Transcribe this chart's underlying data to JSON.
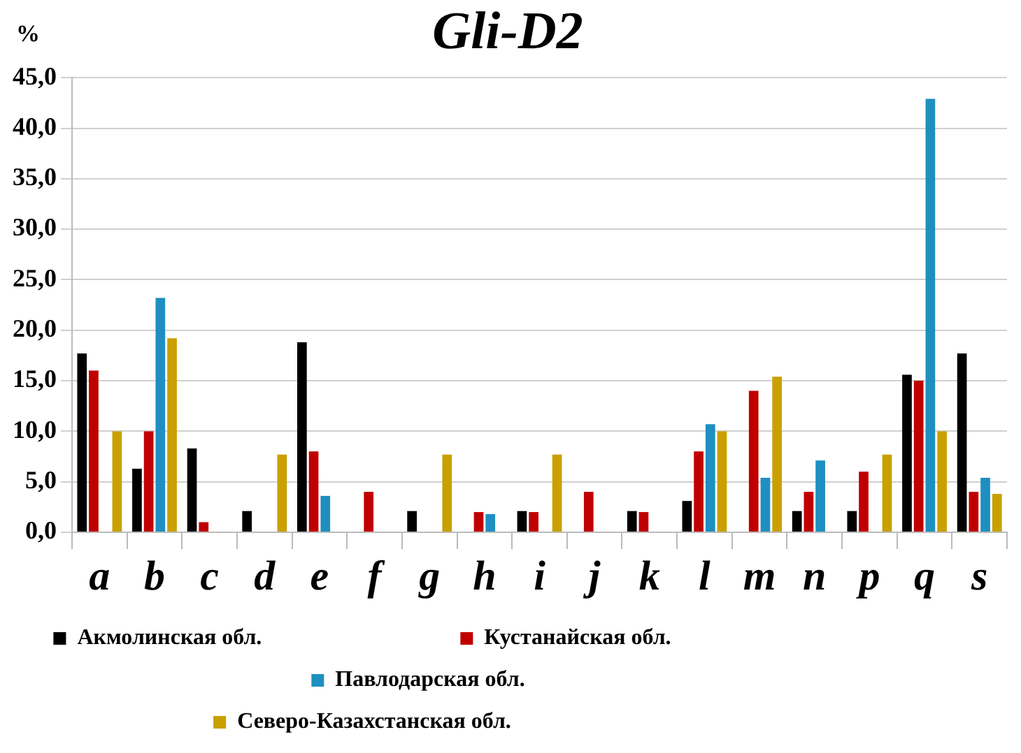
{
  "chart_data": {
    "type": "bar",
    "title": "Gli-D2",
    "ylabel": "%",
    "categories": [
      "a",
      "b",
      "c",
      "d",
      "e",
      "f",
      "g",
      "h",
      "i",
      "j",
      "k",
      "l",
      "m",
      "n",
      "p",
      "q",
      "s"
    ],
    "series": [
      {
        "name": "Акмолинская обл.",
        "color": "#000000",
        "values": [
          17.7,
          6.3,
          8.3,
          2.1,
          18.8,
          0,
          2.1,
          0,
          2.1,
          0,
          2.1,
          3.1,
          0,
          2.1,
          2.1,
          15.6,
          17.7
        ]
      },
      {
        "name": "Кустанайская обл.",
        "color": "#c00000",
        "values": [
          16.0,
          10.0,
          1.0,
          0,
          8.0,
          4.0,
          0,
          2.0,
          2.0,
          4.0,
          2.0,
          8.0,
          14.0,
          4.0,
          6.0,
          15.0,
          4.0
        ]
      },
      {
        "name": "Павлодарская обл.",
        "color": "#1e8fc0",
        "values": [
          0,
          23.2,
          0,
          0,
          3.6,
          0,
          0,
          1.8,
          0,
          0,
          0,
          10.7,
          5.4,
          7.1,
          0,
          42.9,
          5.4
        ]
      },
      {
        "name": "Северо-Казахстанская обл.",
        "color": "#c9a000",
        "values": [
          10.0,
          19.2,
          0,
          7.7,
          0,
          0,
          7.7,
          0,
          7.7,
          0,
          0,
          10.0,
          15.4,
          0,
          7.7,
          10.0,
          3.8
        ]
      }
    ],
    "ylim": [
      0,
      45
    ],
    "yticks": [
      {
        "value": 0,
        "label": "0,0"
      },
      {
        "value": 5,
        "label": "5,0"
      },
      {
        "value": 10,
        "label": "10,0"
      },
      {
        "value": 15,
        "label": "15,0"
      },
      {
        "value": 20,
        "label": "20,0"
      },
      {
        "value": 25,
        "label": "25,0"
      },
      {
        "value": 30,
        "label": "30,0"
      },
      {
        "value": 35,
        "label": "35,0"
      },
      {
        "value": 40,
        "label": "40,0"
      },
      {
        "value": 45,
        "label": "45,0"
      }
    ],
    "grid": "y",
    "legend": "bottom"
  }
}
